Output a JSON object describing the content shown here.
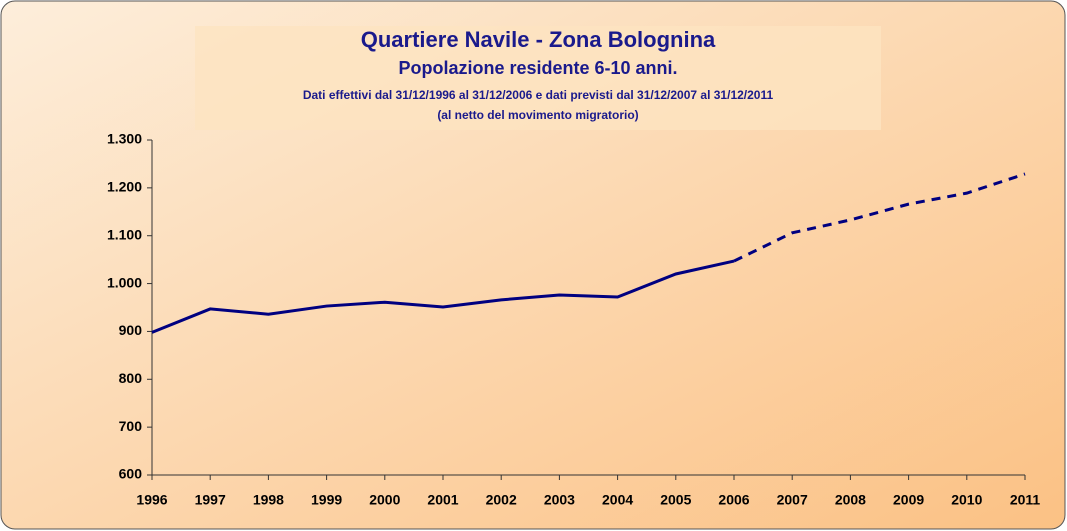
{
  "chart_data": {
    "type": "line",
    "title": "Quartiere Navile - Zona Bolognina",
    "subtitle": "Popolazione residente 6-10 anni.",
    "notes": [
      "Dati effettivi dal 31/12/1996 al 31/12/2006 e dati previsti dal 31/12/2007 al 31/12/2011",
      "(al netto del movimento migratorio)"
    ],
    "categories": [
      "1996",
      "1997",
      "1998",
      "1999",
      "2000",
      "2001",
      "2002",
      "2003",
      "2004",
      "2005",
      "2006",
      "2007",
      "2008",
      "2009",
      "2010",
      "2011"
    ],
    "series": [
      {
        "color": "#000080",
        "style": "solid",
        "values": [
          898,
          947,
          936,
          953,
          961,
          951,
          966,
          976,
          972,
          1020,
          1047,
          null,
          null,
          null,
          null,
          null
        ]
      },
      {
        "color": "#000080",
        "style": "dashed",
        "values": [
          null,
          null,
          null,
          null,
          null,
          null,
          null,
          null,
          null,
          null,
          1047,
          1106,
          1133,
          1166,
          1189,
          1229
        ]
      }
    ],
    "ylim": [
      600,
      1300
    ],
    "yticks": [
      600,
      700,
      800,
      900,
      {
        "value": 1000,
        "label": "1.000"
      },
      {
        "value": 1100,
        "label": "1.100"
      },
      {
        "value": 1200,
        "label": "1.200"
      },
      {
        "value": 1300,
        "label": "1.300"
      }
    ],
    "grid": false
  }
}
